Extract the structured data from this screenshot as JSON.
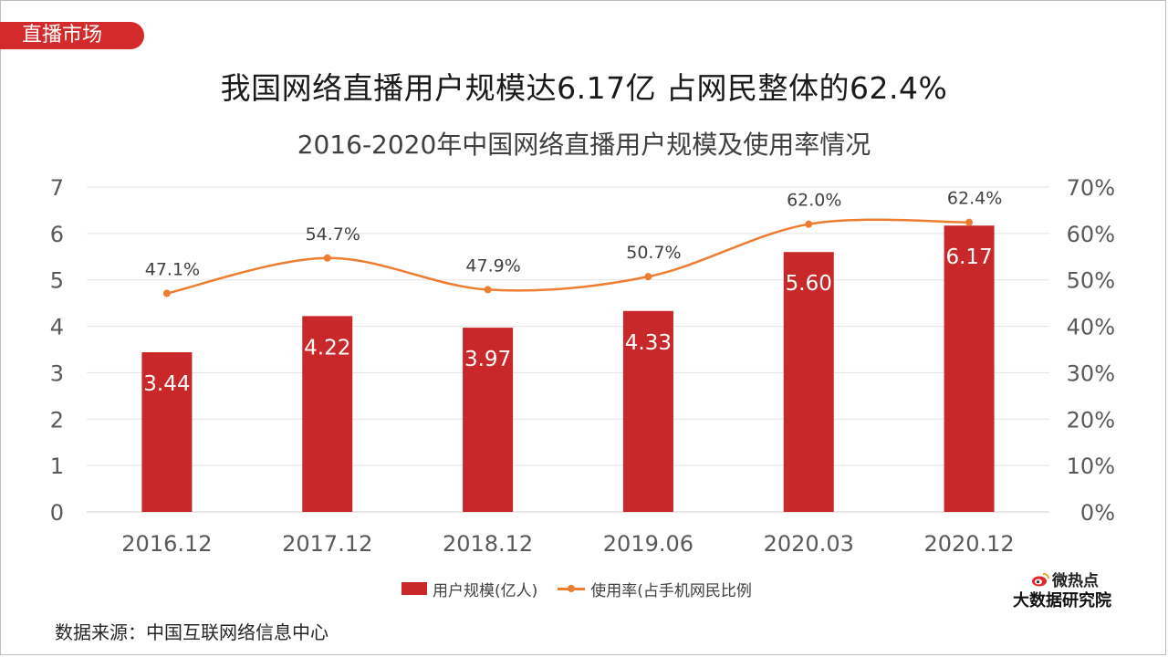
{
  "section_tag": "直播市场",
  "headline": "我国网络直播用户规模达6.17亿 占网民整体的62.4%",
  "source": "数据来源：中国互联网络信息中心",
  "logo": {
    "top": "微热点",
    "bottom": "大数据研究院"
  },
  "colors": {
    "bar": "#c9282a",
    "line": "#ed7d31",
    "tag": "#d32b2b"
  },
  "chart_data": {
    "type": "bar",
    "title": "2016-2020年中国网络直播用户规模及使用率情况",
    "categories": [
      "2016.12",
      "2017.12",
      "2018.12",
      "2019.06",
      "2020.03",
      "2020.12"
    ],
    "series": [
      {
        "name": "用户规模(亿人)",
        "type": "bar",
        "axis": "left",
        "values": [
          3.44,
          4.22,
          3.97,
          4.33,
          5.6,
          6.17
        ],
        "labels": [
          "3.44",
          "4.22",
          "3.97",
          "4.33",
          "5.60",
          "6.17"
        ]
      },
      {
        "name": "使用率(占手机网民比例",
        "type": "line",
        "axis": "right",
        "values": [
          47.1,
          54.7,
          47.9,
          50.7,
          62.0,
          62.4
        ],
        "labels": [
          "47.1%",
          "54.7%",
          "47.9%",
          "50.7%",
          "62.0%",
          "62.4%"
        ]
      }
    ],
    "y_left": {
      "min": 0,
      "max": 7,
      "ticks": [
        "0",
        "1",
        "2",
        "3",
        "4",
        "5",
        "6",
        "7"
      ]
    },
    "y_right": {
      "min": 0,
      "max": 70,
      "ticks": [
        "0%",
        "10%",
        "20%",
        "30%",
        "40%",
        "50%",
        "60%",
        "70%"
      ]
    },
    "grid": true,
    "legend": "bottom"
  }
}
